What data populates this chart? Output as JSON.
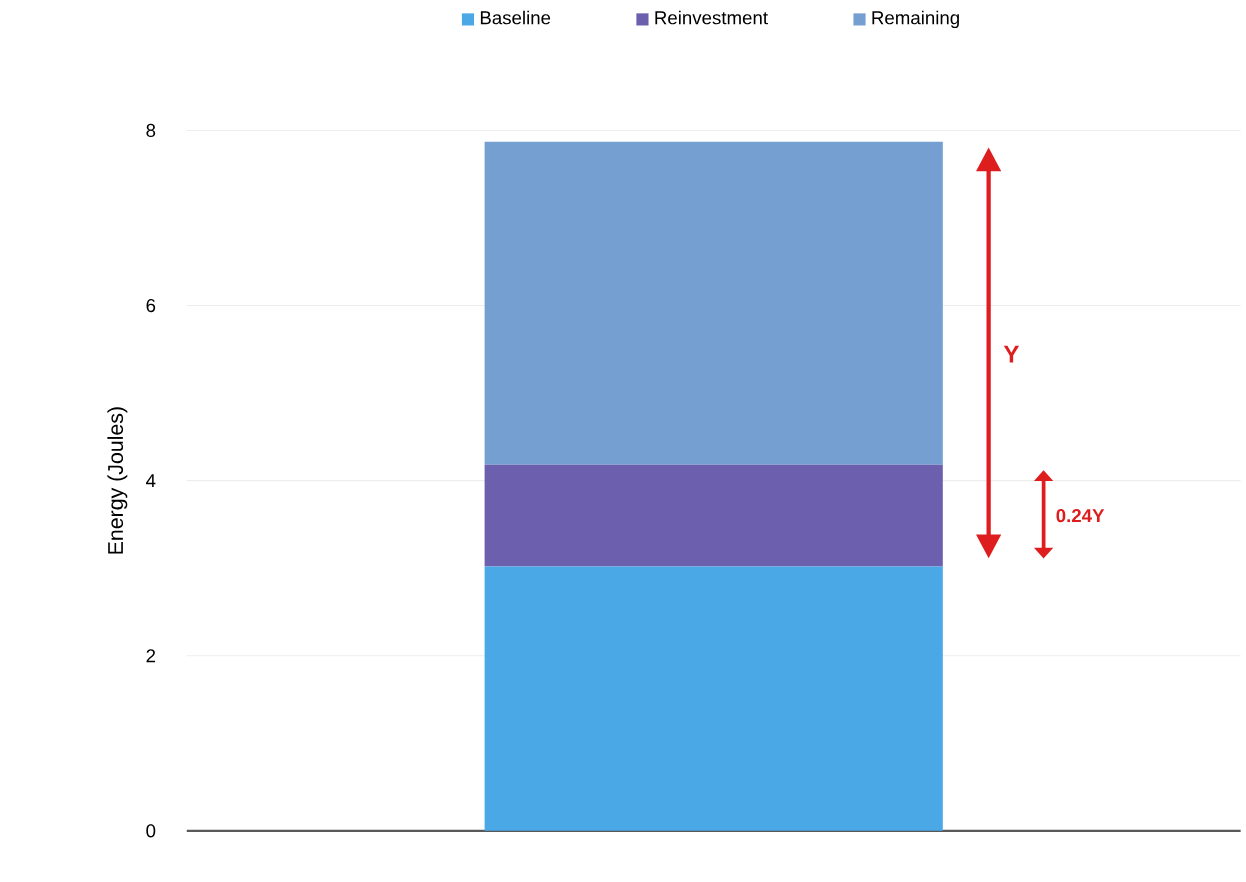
{
  "chart_data": {
    "type": "bar",
    "stacked": true,
    "ylabel": "Energy (Joules)",
    "categories": [
      null
    ],
    "series": [
      {
        "name": "Baseline",
        "color": "#4aa8e6",
        "values": [
          3.02
        ]
      },
      {
        "name": "Reinvestment",
        "color": "#6c5fae",
        "values": [
          1.16
        ]
      },
      {
        "name": "Remaining",
        "color": "#769fd1",
        "values": [
          3.69
        ]
      }
    ],
    "ylim": [
      0,
      8
    ],
    "yticks": [
      0,
      2,
      4,
      6,
      8
    ],
    "grid": "y",
    "legend": "top",
    "annotations": [
      "Y",
      "0.24Y"
    ]
  }
}
